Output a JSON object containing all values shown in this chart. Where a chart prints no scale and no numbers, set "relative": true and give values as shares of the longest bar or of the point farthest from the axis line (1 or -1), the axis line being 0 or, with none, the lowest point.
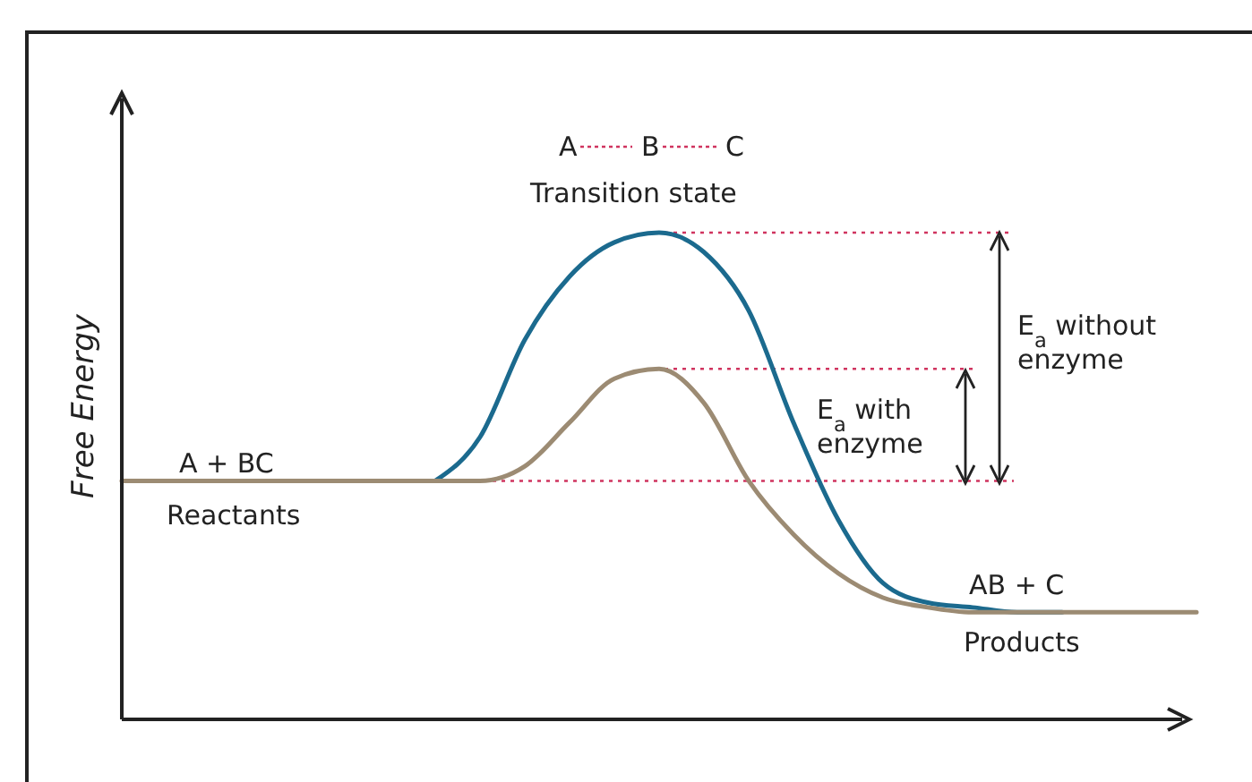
{
  "chart_data": {
    "type": "line",
    "relative": true,
    "ylabel": "Free Energy",
    "categories": [
      null,
      null,
      null,
      null,
      null,
      null,
      null,
      null,
      null,
      null,
      null,
      null,
      null,
      null,
      null,
      null,
      null,
      null,
      null,
      null,
      null,
      null,
      null,
      null,
      null
    ],
    "series": [
      {
        "color": "#1b6a8e",
        "values": [
          null,
          null,
          null,
          null,
          null,
          null,
          null,
          0.49,
          0.58,
          0.78,
          0.91,
          0.98,
          1,
          0.96,
          0.84,
          0.61,
          0.41,
          0.28,
          0.24,
          0.23,
          0.22,
          0.22,
          null,
          null,
          null
        ]
      },
      {
        "color": "#9c8b73",
        "values": [
          0.49,
          0.49,
          0.49,
          0.49,
          0.49,
          0.49,
          0.49,
          0.49,
          0.49,
          0.52,
          0.61,
          0.7,
          0.72,
          0.65,
          0.49,
          0.38,
          0.3,
          0.25,
          0.23,
          0.22,
          0.22,
          0.22,
          0.22,
          0.22,
          0.22
        ]
      }
    ],
    "ref_lines": [
      {
        "axis": "y",
        "value": 0.49,
        "color": "#d0345f",
        "line_style": "dotted"
      },
      {
        "axis": "y",
        "value": 0.72,
        "color": "#d0345f",
        "line_style": "dotted"
      },
      {
        "axis": "y",
        "value": 1,
        "color": "#d0345f",
        "line_style": "dotted"
      }
    ],
    "annotations": [
      "A + BC",
      "Reactants",
      "Transition state",
      "A",
      "B",
      "C",
      "E$_{a}$ without enzyme",
      "E$_{a}$ with enzyme",
      "AB + C",
      "Products"
    ]
  }
}
